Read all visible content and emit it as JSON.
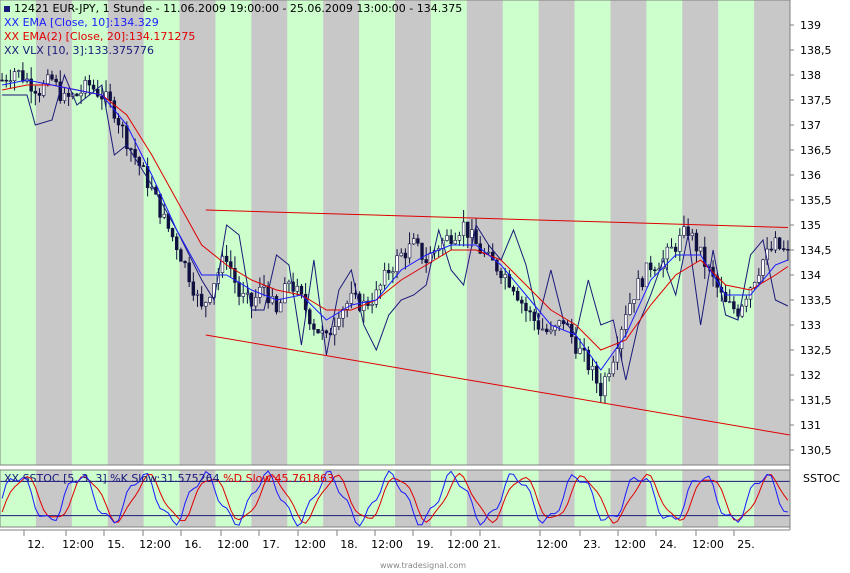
{
  "header": {
    "title": "12421  EUR-JPY, 1 Stunde - 11.06.2009 19:00:00 - 25.06.2009 13:00:00 - 134.375",
    "indicators": [
      {
        "marker": "XX",
        "text": "EMA [Close, 10]:134.329",
        "color": "#1a1aff"
      },
      {
        "marker": "XX",
        "text": "EMA(2) [Close, 20]:134.171275",
        "color": "#e00000"
      },
      {
        "marker": "XX",
        "text": "VLX [10, 3]:133.375776",
        "color": "#1a1a7a"
      }
    ]
  },
  "oscillator": {
    "marker": "XX",
    "label_prefix": "SSTOC [5, 3, 3] %K Slow:31.575264",
    "label_suffix": " %D Slow:45.761863",
    "panel_title": "SSTOC",
    "k_color": "#1a1aff",
    "d_color": "#e00000"
  },
  "watermark": "www.tradesignal.com",
  "colors": {
    "session_green": "#ccffcc",
    "session_gray": "#c8c8c8",
    "candle": "#101040",
    "trend": "#e00000"
  },
  "chart_data": {
    "type": "candlestick",
    "symbol": "EUR-JPY",
    "ylim": [
      130.2,
      139.5
    ],
    "y_ticks": [
      "139",
      "138,5",
      "138",
      "137,5",
      "137",
      "136,5",
      "136",
      "135,5",
      "135",
      "134,5",
      "134",
      "133,5",
      "133",
      "132,5",
      "132",
      "131,5",
      "131",
      "130,5"
    ],
    "x_ticks": [
      "12.",
      "12:00",
      "15.",
      "12:00",
      "16.",
      "12:00",
      "17.",
      "12:00",
      "18.",
      "12:00",
      "19.",
      "12:00",
      "21.",
      "12:00",
      "23.",
      "12:00",
      "24.",
      "12:00",
      "25."
    ],
    "close_path": [
      [
        0,
        137.9
      ],
      [
        3,
        138.1
      ],
      [
        6,
        137.9
      ],
      [
        9,
        137.7
      ],
      [
        12,
        137.9
      ],
      [
        15,
        137.5
      ],
      [
        18,
        137.6
      ],
      [
        21,
        137.8
      ],
      [
        24,
        137.6
      ],
      [
        27,
        137.3
      ],
      [
        30,
        136.7
      ],
      [
        33,
        136.2
      ],
      [
        36,
        135.7
      ],
      [
        39,
        135.1
      ],
      [
        42,
        134.6
      ],
      [
        45,
        134.0
      ],
      [
        48,
        133.3
      ],
      [
        51,
        133.9
      ],
      [
        54,
        134.4
      ],
      [
        57,
        133.6
      ],
      [
        60,
        133.4
      ],
      [
        63,
        133.8
      ],
      [
        66,
        133.2
      ],
      [
        69,
        133.9
      ],
      [
        72,
        133.5
      ],
      [
        75,
        133.0
      ],
      [
        78,
        132.7
      ],
      [
        81,
        133.3
      ],
      [
        84,
        133.5
      ],
      [
        87,
        133.4
      ],
      [
        90,
        133.6
      ],
      [
        93,
        134.1
      ],
      [
        96,
        134.4
      ],
      [
        99,
        134.6
      ],
      [
        102,
        134.3
      ],
      [
        105,
        134.6
      ],
      [
        108,
        134.8
      ],
      [
        111,
        135.0
      ],
      [
        114,
        134.6
      ],
      [
        117,
        134.3
      ],
      [
        120,
        134.1
      ],
      [
        123,
        133.8
      ],
      [
        126,
        133.3
      ],
      [
        129,
        133.0
      ],
      [
        132,
        132.8
      ],
      [
        135,
        133.1
      ],
      [
        138,
        132.6
      ],
      [
        141,
        132.2
      ],
      [
        144,
        131.7
      ],
      [
        147,
        132.4
      ],
      [
        150,
        133.3
      ],
      [
        153,
        133.8
      ],
      [
        156,
        134.2
      ],
      [
        159,
        134.3
      ],
      [
        162,
        134.6
      ],
      [
        165,
        134.9
      ],
      [
        168,
        134.4
      ],
      [
        171,
        133.9
      ],
      [
        174,
        133.4
      ],
      [
        177,
        133.3
      ],
      [
        180,
        133.8
      ],
      [
        183,
        134.3
      ],
      [
        186,
        134.6
      ],
      [
        189,
        134.4
      ]
    ],
    "ema10": [
      [
        0,
        137.8
      ],
      [
        6,
        137.9
      ],
      [
        12,
        137.8
      ],
      [
        18,
        137.7
      ],
      [
        24,
        137.6
      ],
      [
        30,
        137.0
      ],
      [
        36,
        136.0
      ],
      [
        42,
        134.9
      ],
      [
        48,
        134.0
      ],
      [
        54,
        134.0
      ],
      [
        60,
        133.7
      ],
      [
        66,
        133.5
      ],
      [
        72,
        133.6
      ],
      [
        78,
        133.1
      ],
      [
        84,
        133.4
      ],
      [
        90,
        133.5
      ],
      [
        96,
        134.1
      ],
      [
        102,
        134.4
      ],
      [
        108,
        134.6
      ],
      [
        114,
        134.6
      ],
      [
        120,
        134.2
      ],
      [
        126,
        133.6
      ],
      [
        132,
        133.0
      ],
      [
        138,
        132.8
      ],
      [
        144,
        132.1
      ],
      [
        150,
        132.8
      ],
      [
        156,
        133.9
      ],
      [
        162,
        134.4
      ],
      [
        168,
        134.4
      ],
      [
        174,
        133.6
      ],
      [
        180,
        133.6
      ],
      [
        186,
        134.2
      ],
      [
        189,
        134.3
      ]
    ],
    "ema20": [
      [
        0,
        137.7
      ],
      [
        6,
        137.8
      ],
      [
        12,
        137.8
      ],
      [
        18,
        137.7
      ],
      [
        24,
        137.6
      ],
      [
        30,
        137.2
      ],
      [
        36,
        136.4
      ],
      [
        42,
        135.5
      ],
      [
        48,
        134.6
      ],
      [
        54,
        134.2
      ],
      [
        60,
        133.9
      ],
      [
        66,
        133.7
      ],
      [
        72,
        133.6
      ],
      [
        78,
        133.3
      ],
      [
        84,
        133.3
      ],
      [
        90,
        133.5
      ],
      [
        96,
        133.9
      ],
      [
        102,
        134.2
      ],
      [
        108,
        134.5
      ],
      [
        114,
        134.5
      ],
      [
        120,
        134.3
      ],
      [
        126,
        133.8
      ],
      [
        132,
        133.3
      ],
      [
        138,
        133.0
      ],
      [
        144,
        132.5
      ],
      [
        150,
        132.7
      ],
      [
        156,
        133.4
      ],
      [
        162,
        134.0
      ],
      [
        168,
        134.3
      ],
      [
        174,
        133.8
      ],
      [
        180,
        133.7
      ],
      [
        186,
        134.0
      ],
      [
        189,
        134.17
      ]
    ],
    "vlx": [
      [
        0,
        137.6
      ],
      [
        6,
        137.6
      ],
      [
        8,
        137.0
      ],
      [
        12,
        137.1
      ],
      [
        15,
        138.0
      ],
      [
        18,
        137.4
      ],
      [
        24,
        137.8
      ],
      [
        27,
        136.4
      ],
      [
        30,
        136.6
      ],
      [
        36,
        135.8
      ],
      [
        42,
        134.9
      ],
      [
        48,
        133.9
      ],
      [
        51,
        133.5
      ],
      [
        54,
        135.0
      ],
      [
        57,
        134.8
      ],
      [
        60,
        133.3
      ],
      [
        63,
        133.3
      ],
      [
        66,
        134.4
      ],
      [
        69,
        134.2
      ],
      [
        72,
        132.6
      ],
      [
        75,
        134.3
      ],
      [
        78,
        132.4
      ],
      [
        81,
        133.7
      ],
      [
        84,
        134.1
      ],
      [
        87,
        133.0
      ],
      [
        90,
        132.5
      ],
      [
        93,
        133.2
      ],
      [
        96,
        133.5
      ],
      [
        99,
        133.6
      ],
      [
        102,
        133.8
      ],
      [
        105,
        134.9
      ],
      [
        108,
        134.1
      ],
      [
        111,
        133.8
      ],
      [
        114,
        135.0
      ],
      [
        117,
        134.6
      ],
      [
        120,
        134.3
      ],
      [
        123,
        134.9
      ],
      [
        126,
        134.2
      ],
      [
        129,
        133.1
      ],
      [
        132,
        134.1
      ],
      [
        135,
        133.1
      ],
      [
        138,
        132.8
      ],
      [
        141,
        133.9
      ],
      [
        144,
        133.0
      ],
      [
        147,
        133.1
      ],
      [
        150,
        131.9
      ],
      [
        153,
        133.0
      ],
      [
        156,
        133.6
      ],
      [
        159,
        134.3
      ],
      [
        162,
        133.6
      ],
      [
        165,
        134.8
      ],
      [
        168,
        133.0
      ],
      [
        171,
        134.5
      ],
      [
        174,
        133.2
      ],
      [
        177,
        133.1
      ],
      [
        180,
        134.4
      ],
      [
        183,
        134.7
      ],
      [
        186,
        133.5
      ],
      [
        189,
        133.38
      ]
    ],
    "trendlines": [
      {
        "from": [
          49,
          135.3
        ],
        "to": [
          189,
          134.95
        ]
      },
      {
        "from": [
          49,
          132.8
        ],
        "to": [
          189,
          130.8
        ]
      }
    ],
    "sstoc": {
      "ylim": [
        0,
        100
      ],
      "levels": [
        80,
        20
      ],
      "k_last": 31.575264,
      "d_last": 45.761863
    }
  }
}
